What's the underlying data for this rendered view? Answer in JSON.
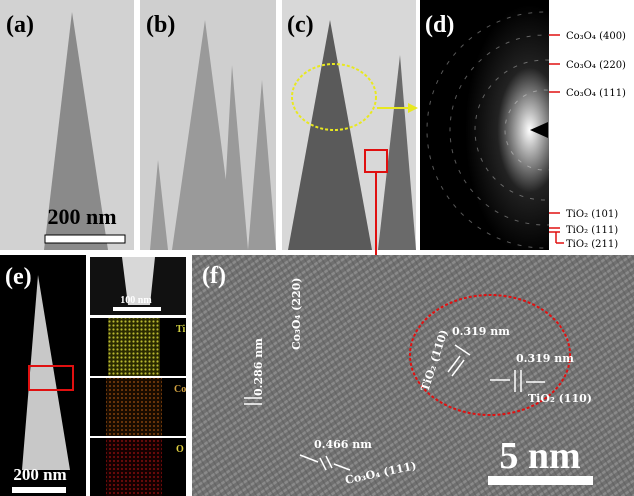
{
  "panels": {
    "a": {
      "label": "(a)",
      "scale_bar": "200 nm"
    },
    "b": {
      "label": "(b)"
    },
    "c": {
      "label": "(c)"
    },
    "d": {
      "label": "(d)",
      "rings": [
        "Co₃O₄ (400)",
        "Co₃O₄ (220)",
        "Co₃O₄ (111)",
        "TiO₂ (101)",
        "TiO₂ (111)",
        "TiO₂ (211)"
      ]
    },
    "e": {
      "label": "(e)",
      "scale_bar": "200 nm",
      "map_scale_bar": "100 nm",
      "maps": [
        "Ti",
        "Co",
        "O"
      ]
    },
    "f": {
      "label": "(f)",
      "scale_bar": "5 nm",
      "annotations": [
        "0.286 nm",
        "Co₃O₄ (220)",
        "0.466 nm",
        "Co₃O₄ (111)",
        "0.319 nm",
        "TiO₂ (110)",
        "0.319 nm",
        "TiO₂ (110)"
      ]
    }
  }
}
